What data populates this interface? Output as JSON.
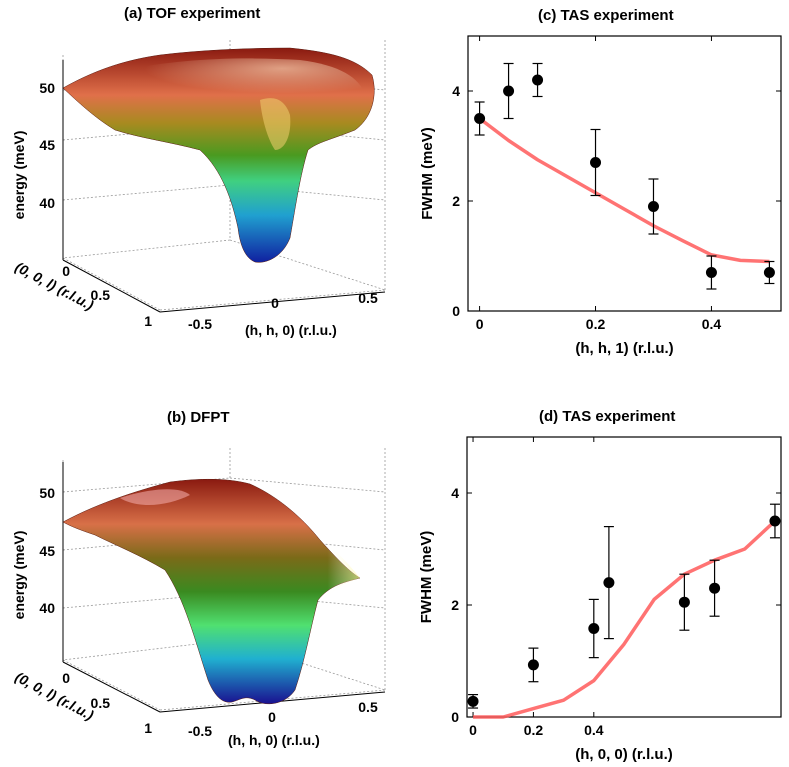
{
  "panel_a": {
    "title": "(a) TOF experiment",
    "zlabel": "energy (meV)",
    "ylabel": "(0, 0, l) (r.l.u.)",
    "xlabel": "(h, h, 0) (r.l.u.)",
    "zticks": [
      "50",
      "45",
      "40"
    ],
    "yticks": [
      "0",
      "0.5",
      "1"
    ],
    "xticks": [
      "-0.5",
      "0",
      "0.5"
    ]
  },
  "panel_b": {
    "title": "(b) DFPT",
    "zlabel": "energy (meV)",
    "ylabel": "(0, 0, l) (r.l.u.)",
    "xlabel": "(h, h, 0) (r.l.u.)",
    "zticks": [
      "50",
      "45",
      "40"
    ],
    "yticks": [
      "0",
      "0.5",
      "1"
    ],
    "xticks": [
      "-0.5",
      "0",
      "0.5"
    ]
  },
  "chart_data": [
    {
      "type": "scatter",
      "title": "(c) TAS experiment",
      "xlabel": "(h, h, 1) (r.l.u.)",
      "ylabel": "FWHM (meV)",
      "xlim": [
        -0.02,
        0.52
      ],
      "ylim": [
        0,
        5
      ],
      "xticks": [
        0,
        0.2,
        0.4
      ],
      "xtick_labels": [
        "0",
        "0.2",
        "0.4"
      ],
      "yticks": [
        0,
        2,
        4
      ],
      "ytick_labels": [
        "0",
        "2",
        "4"
      ],
      "points": {
        "x": [
          0,
          0.05,
          0.1,
          0.2,
          0.3,
          0.4,
          0.5
        ],
        "y": [
          3.5,
          4.0,
          4.2,
          2.7,
          1.9,
          0.7,
          0.7
        ],
        "err": [
          0.3,
          0.5,
          0.3,
          0.6,
          0.5,
          0.3,
          0.2
        ]
      },
      "line": {
        "color": "#ff5a5a",
        "x": [
          0,
          0.05,
          0.1,
          0.15,
          0.2,
          0.25,
          0.3,
          0.35,
          0.4,
          0.45,
          0.5
        ],
        "y": [
          3.5,
          3.1,
          2.75,
          2.45,
          2.15,
          1.85,
          1.55,
          1.28,
          1.02,
          0.92,
          0.9
        ]
      }
    },
    {
      "type": "scatter",
      "title": "(d) TAS experiment",
      "xlabel": "(h, 0, 0) (r.l.u.)",
      "ylabel": "FWHM (meV)",
      "xlim": [
        -0.02,
        1.02
      ],
      "ylim": [
        0,
        5
      ],
      "xticks": [
        0,
        0.2,
        0.4
      ],
      "xtick_labels": [
        "0",
        "0.2",
        "0.4"
      ],
      "yticks": [
        0,
        2,
        4
      ],
      "ytick_labels": [
        "0",
        "2",
        "4"
      ],
      "points": {
        "x": [
          0,
          0.2,
          0.4,
          0.45,
          0.7,
          0.8,
          1.0
        ],
        "y": [
          0.28,
          0.93,
          1.58,
          2.4,
          2.05,
          2.3,
          3.5
        ],
        "err": [
          0.12,
          0.3,
          0.52,
          1.0,
          0.5,
          0.5,
          0.3
        ]
      },
      "line": {
        "color": "#ff5a5a",
        "x": [
          0,
          0.1,
          0.2,
          0.3,
          0.4,
          0.5,
          0.6,
          0.7,
          0.8,
          0.9,
          1.0
        ],
        "y": [
          0,
          0,
          0.15,
          0.3,
          0.65,
          1.3,
          2.1,
          2.55,
          2.8,
          3.0,
          3.5
        ]
      }
    }
  ]
}
